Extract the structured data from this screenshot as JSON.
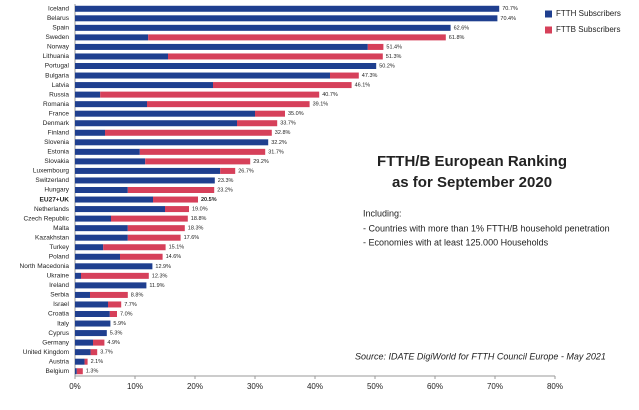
{
  "chart_data": {
    "type": "stacked_barh",
    "title": [
      "FTTH/B European Ranking",
      "as for September 2020"
    ],
    "notes_heading": "Including:",
    "notes": [
      "- Countries with more than 1% FTTH/B household penetration",
      "- Economies with at least 125.000 Households"
    ],
    "source": "Source: IDATE DigiWorld for FTTH Council Europe - May 2021",
    "categories": [
      "Iceland",
      "Belarus",
      "Spain",
      "Sweden",
      "Norway",
      "Lithuania",
      "Portugal",
      "Bulgaria",
      "Latvia",
      "Russia",
      "Romania",
      "France",
      "Denmark",
      "Finland",
      "Slovenia",
      "Estonia",
      "Slovakia",
      "Luxembourg",
      "Switzerland",
      "Hungary",
      "EU27+UK",
      "Netherlands",
      "Czech Republic",
      "Malta",
      "Kazakhstan",
      "Turkey",
      "Poland",
      "North Macedonia",
      "Ukraine",
      "Ireland",
      "Serbia",
      "Israel",
      "Croatia",
      "Italy",
      "Cyprus",
      "Germany",
      "United Kingdom",
      "Austria",
      "Belgium"
    ],
    "highlight_category": "EU27+UK",
    "series": [
      {
        "name": "FTTH Subscribers",
        "color": "#1f3f8f",
        "values": [
          70.7,
          70.4,
          62.6,
          12.2,
          48.8,
          15.5,
          50.2,
          42.5,
          23,
          4.2,
          12,
          30,
          27,
          5,
          32.2,
          10.8,
          11.7,
          24.2,
          23.3,
          8.8,
          13,
          15,
          6,
          8.8,
          8.8,
          4.7,
          7.5,
          12.9,
          1,
          11.9,
          2.5,
          5.5,
          5.8,
          5.9,
          5.3,
          3,
          2.6,
          1.6,
          0.3
        ]
      },
      {
        "name": "FTTB Subscribers",
        "color": "#d6405a",
        "values": [
          0,
          0,
          0,
          49.6,
          2.6,
          35.8,
          0,
          4.8,
          23.1,
          36.5,
          27.1,
          5,
          6.7,
          27.8,
          0,
          20.9,
          17.5,
          2.5,
          0,
          14.4,
          7.5,
          4,
          12.8,
          9.5,
          8.8,
          10.4,
          7.1,
          0,
          11.3,
          0,
          6.3,
          2.2,
          1.2,
          0,
          0,
          1.9,
          1.1,
          0.5,
          1.0
        ]
      }
    ],
    "totals": [
      70.7,
      70.4,
      62.6,
      61.8,
      51.4,
      51.3,
      50.2,
      47.3,
      46.1,
      40.7,
      39.1,
      35.0,
      33.7,
      32.8,
      32.2,
      31.7,
      29.2,
      26.7,
      23.3,
      23.2,
      20.5,
      19.0,
      18.8,
      18.3,
      17.6,
      15.1,
      14.6,
      12.9,
      12.3,
      11.9,
      8.8,
      7.7,
      7.0,
      5.9,
      5.3,
      4.9,
      3.7,
      2.1,
      1.3
    ],
    "total_labels": [
      "70.7%",
      "70.4%",
      "62.6%",
      "61.8%",
      "51.4%",
      "51.3%",
      "50.2%",
      "47.3%",
      "46.1%",
      "40.7%",
      "39.1%",
      "35.0%",
      "33.7%",
      "32.8%",
      "32.2%",
      "31.7%",
      "29.2%",
      "26.7%",
      "23.3%",
      "23.2%",
      "20.5%",
      "19.0%",
      "18.8%",
      "18.3%",
      "17.6%",
      "15.1%",
      "14.6%",
      "12.9%",
      "12.3%",
      "11.9%",
      "8.8%",
      "7.7%",
      "7.0%",
      "5.9%",
      "5.3%",
      "4.9%",
      "3.7%",
      "2.1%",
      "1.3%"
    ],
    "xlim": [
      0,
      80
    ],
    "xticks": [
      {
        "value": 0,
        "label": "0%"
      },
      {
        "value": 10,
        "label": "10%"
      },
      {
        "value": 20,
        "label": "20%"
      },
      {
        "value": 30,
        "label": "30%"
      },
      {
        "value": 40,
        "label": "40%"
      },
      {
        "value": 50,
        "label": "50%"
      },
      {
        "value": 60,
        "label": "60%"
      },
      {
        "value": 70,
        "label": "70%"
      },
      {
        "value": 80,
        "label": "80%"
      }
    ],
    "legend": "top-right"
  }
}
